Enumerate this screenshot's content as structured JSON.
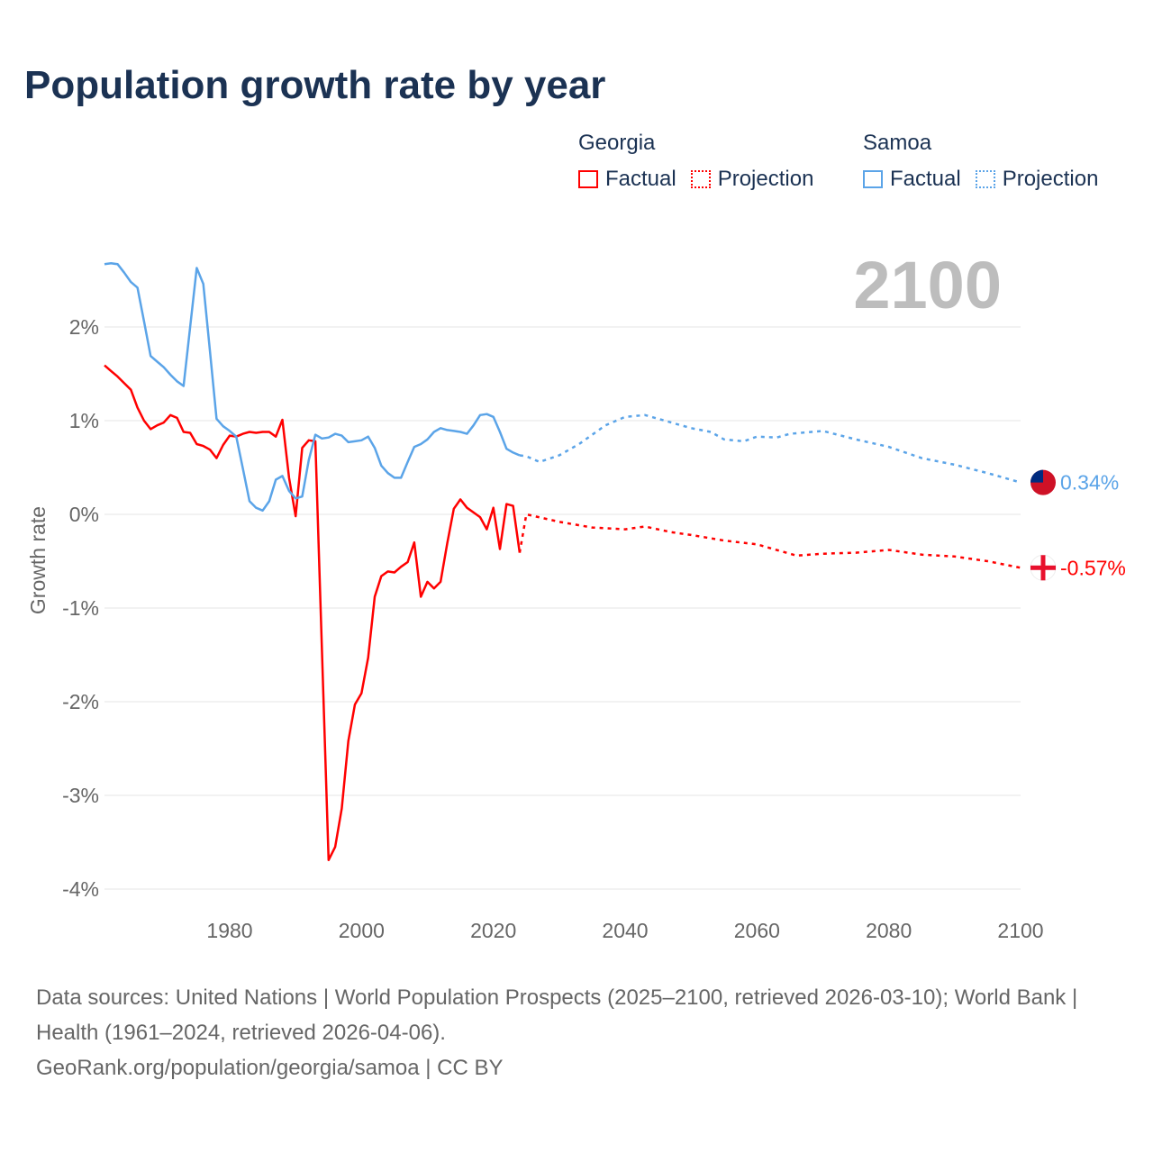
{
  "title": "Population growth rate by year",
  "legend": {
    "groups": [
      {
        "name": "Georgia",
        "color": "#ff0000",
        "factual": "Factual",
        "projection": "Projection"
      },
      {
        "name": "Samoa",
        "color": "#5ba4e8",
        "factual": "Factual",
        "projection": "Projection"
      }
    ]
  },
  "year_label": "2100",
  "footer": {
    "sources": "Data sources: United Nations | World Population Prospects (2025–2100, retrieved 2026-03-10); World Bank | Health (1961–2024, retrieved 2026-04-06).",
    "credit": "GeoRank.org/population/georgia/samoa | CC BY"
  },
  "chart_data": {
    "type": "line",
    "title": "Population growth rate by year",
    "xlabel": "",
    "ylabel": "Growth rate",
    "xlim": [
      1961,
      2100
    ],
    "ylim": [
      -4.3,
      2.9
    ],
    "xticks": [
      1980,
      2000,
      2020,
      2040,
      2060,
      2080,
      2100
    ],
    "xtick_labels": [
      "1980",
      "2000",
      "2020",
      "2040",
      "2060",
      "2080",
      "2100"
    ],
    "yticks": [
      2,
      1,
      0,
      -1,
      -2,
      -3,
      -4
    ],
    "ytick_labels": [
      "2%",
      "1%",
      "0%",
      "-1%",
      "-2%",
      "-3%",
      "-4%"
    ],
    "grid": true,
    "series": [
      {
        "name": "Georgia Factual",
        "color": "#ff0000",
        "style": "solid",
        "x": [
          1961,
          1962,
          1963,
          1964,
          1965,
          1966,
          1967,
          1968,
          1969,
          1970,
          1971,
          1972,
          1973,
          1974,
          1975,
          1976,
          1977,
          1978,
          1979,
          1980,
          1981,
          1982,
          1983,
          1984,
          1985,
          1986,
          1987,
          1988,
          1989,
          1990,
          1991,
          1992,
          1993,
          1994,
          1995,
          1996,
          1997,
          1998,
          1999,
          2000,
          2001,
          2002,
          2003,
          2004,
          2005,
          2006,
          2007,
          2008,
          2009,
          2010,
          2011,
          2012,
          2013,
          2014,
          2015,
          2016,
          2017,
          2018,
          2019,
          2020,
          2021,
          2022,
          2023,
          2024
        ],
        "y": [
          1.59,
          1.53,
          1.47,
          1.4,
          1.33,
          1.14,
          1.0,
          0.91,
          0.95,
          0.98,
          1.06,
          1.03,
          0.88,
          0.87,
          0.75,
          0.73,
          0.69,
          0.6,
          0.74,
          0.84,
          0.83,
          0.86,
          0.88,
          0.87,
          0.88,
          0.88,
          0.83,
          1.01,
          0.39,
          -0.02,
          0.71,
          0.79,
          0.78,
          -1.45,
          -3.69,
          -3.55,
          -3.14,
          -2.42,
          -2.03,
          -1.91,
          -1.53,
          -0.88,
          -0.66,
          -0.61,
          -0.62,
          -0.56,
          -0.51,
          -0.3,
          -0.88,
          -0.72,
          -0.79,
          -0.72,
          -0.31,
          0.06,
          0.16,
          0.07,
          0.02,
          -0.03,
          -0.16,
          0.07,
          -0.37,
          0.11,
          0.09,
          -0.41
        ]
      },
      {
        "name": "Georgia Projection",
        "color": "#ff0000",
        "style": "dotted",
        "x": [
          2024,
          2025,
          2030,
          2035,
          2040,
          2043,
          2047,
          2050,
          2055,
          2060,
          2066,
          2070,
          2075,
          2080,
          2085,
          2090,
          2095,
          2100
        ],
        "y": [
          -0.41,
          0.0,
          -0.08,
          -0.14,
          -0.16,
          -0.13,
          -0.19,
          -0.22,
          -0.28,
          -0.32,
          -0.44,
          -0.42,
          -0.41,
          -0.38,
          -0.43,
          -0.45,
          -0.5,
          -0.57
        ]
      },
      {
        "name": "Samoa Factual",
        "color": "#5ba4e8",
        "style": "solid",
        "x": [
          1961,
          1962,
          1963,
          1964,
          1965,
          1966,
          1967,
          1968,
          1969,
          1970,
          1971,
          1972,
          1973,
          1974,
          1975,
          1976,
          1977,
          1978,
          1979,
          1980,
          1981,
          1982,
          1983,
          1984,
          1985,
          1986,
          1987,
          1988,
          1989,
          1990,
          1991,
          1992,
          1993,
          1994,
          1995,
          1996,
          1997,
          1998,
          1999,
          2000,
          2001,
          2002,
          2003,
          2004,
          2005,
          2006,
          2007,
          2008,
          2009,
          2010,
          2011,
          2012,
          2013,
          2014,
          2015,
          2016,
          2017,
          2018,
          2019,
          2020,
          2021,
          2022,
          2023,
          2024
        ],
        "y": [
          2.67,
          2.68,
          2.67,
          2.58,
          2.48,
          2.42,
          2.06,
          1.69,
          1.63,
          1.57,
          1.49,
          1.42,
          1.37,
          2.0,
          2.63,
          2.46,
          1.74,
          1.02,
          0.94,
          0.89,
          0.83,
          0.49,
          0.14,
          0.07,
          0.04,
          0.14,
          0.37,
          0.41,
          0.25,
          0.17,
          0.19,
          0.58,
          0.85,
          0.81,
          0.82,
          0.86,
          0.84,
          0.77,
          0.78,
          0.79,
          0.83,
          0.71,
          0.52,
          0.44,
          0.39,
          0.39,
          0.56,
          0.72,
          0.75,
          0.8,
          0.88,
          0.92,
          0.9,
          0.89,
          0.88,
          0.86,
          0.95,
          1.06,
          1.07,
          1.04,
          0.88,
          0.7,
          0.66,
          0.63
        ]
      },
      {
        "name": "Samoa Projection",
        "color": "#5ba4e8",
        "style": "dotted",
        "x": [
          2024,
          2025,
          2027,
          2030,
          2033,
          2037,
          2040,
          2043,
          2045,
          2050,
          2053,
          2055,
          2058,
          2060,
          2063,
          2065,
          2070,
          2075,
          2080,
          2085,
          2090,
          2095,
          2100
        ],
        "y": [
          0.63,
          0.62,
          0.56,
          0.63,
          0.75,
          0.95,
          1.04,
          1.06,
          1.02,
          0.92,
          0.88,
          0.8,
          0.78,
          0.83,
          0.82,
          0.86,
          0.89,
          0.8,
          0.72,
          0.6,
          0.53,
          0.44,
          0.34
        ]
      }
    ],
    "end_labels": [
      {
        "series": "Samoa",
        "text": "0.34%",
        "value": 0.34,
        "color": "#5ba4e8"
      },
      {
        "series": "Georgia",
        "text": "-0.57%",
        "value": -0.57,
        "color": "#ff0000"
      }
    ]
  }
}
